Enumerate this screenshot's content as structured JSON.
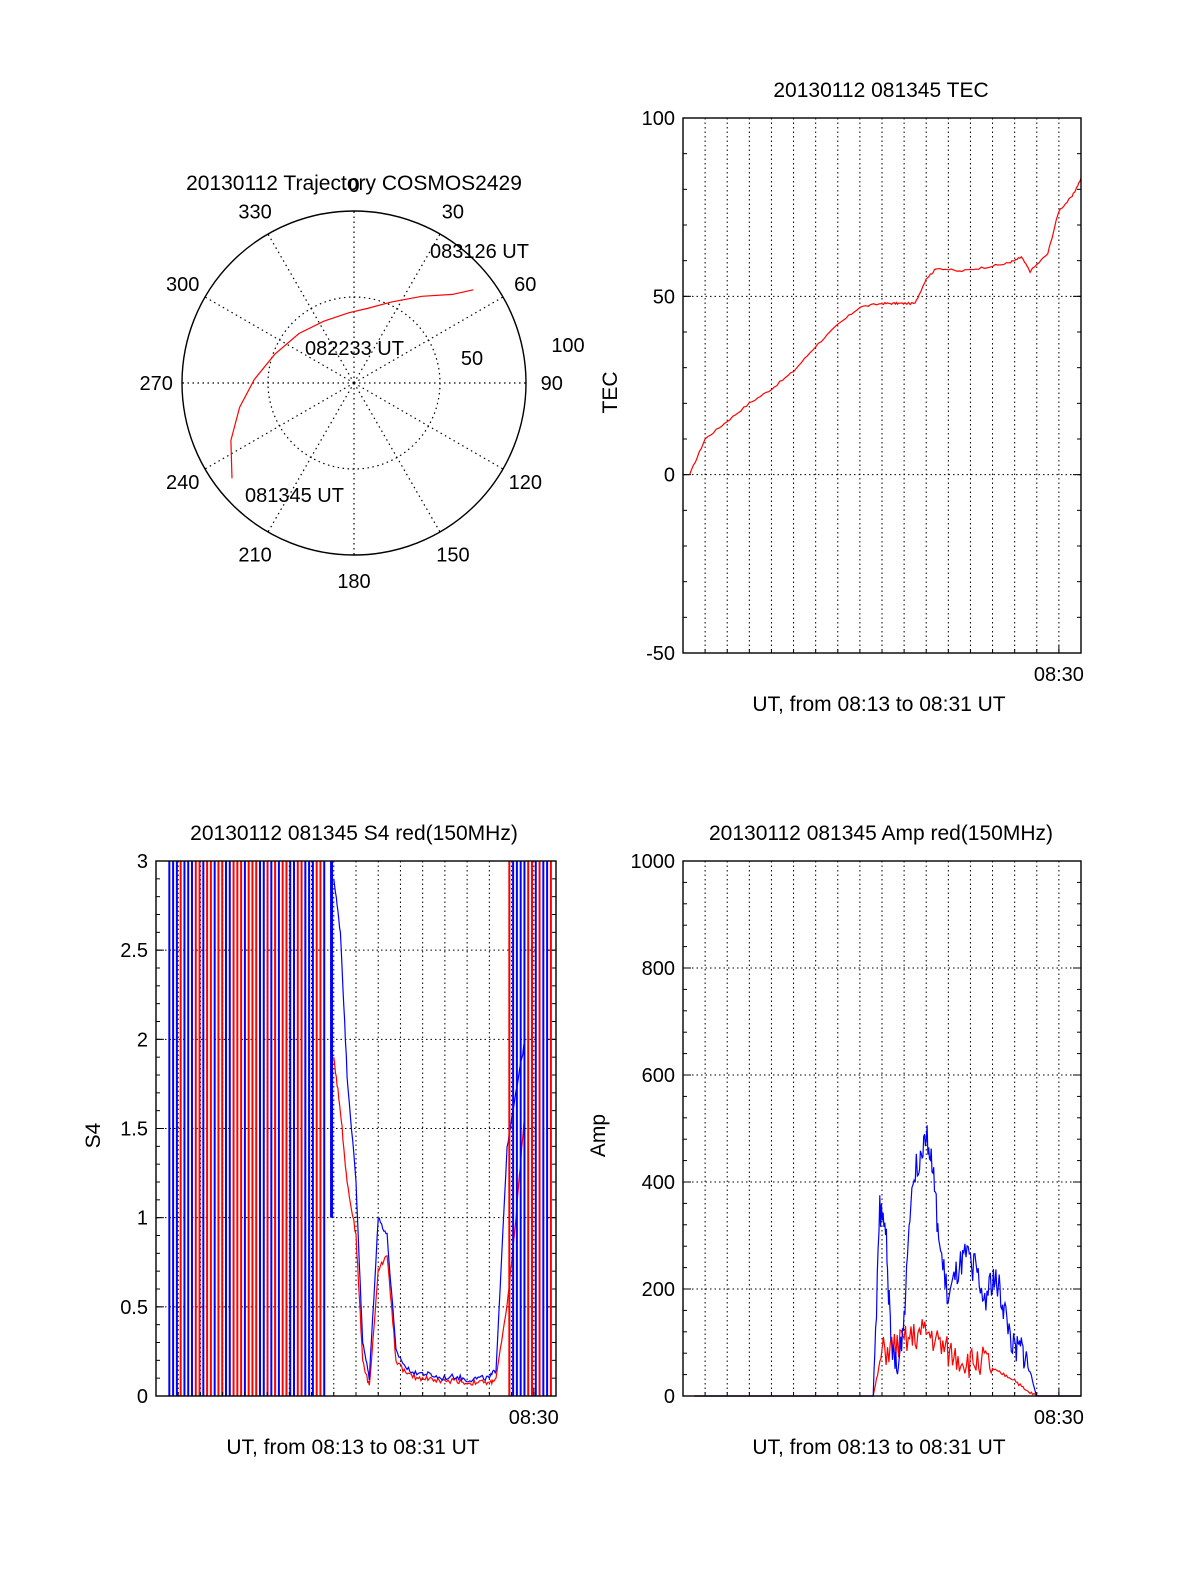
{
  "chart_data": [
    {
      "type": "polar",
      "title": "20130112 Trajectory COSMOS2429",
      "azimuth_labels": [
        "0",
        "30",
        "60",
        "90",
        "120",
        "150",
        "180",
        "210",
        "240",
        "270",
        "300",
        "330"
      ],
      "radial_labels": [
        "50",
        "100"
      ],
      "rmax": 100,
      "grid": true,
      "annotations": [
        {
          "text": "083126 UT",
          "azimuth": 52,
          "r": 88
        },
        {
          "text": "082233 UT",
          "azimuth": 0,
          "r": 2
        },
        {
          "text": "081345 UT",
          "azimuth": 232,
          "r": 90
        }
      ],
      "series": [
        {
          "color": "#ff0000",
          "points": [
            [
              232,
              90
            ],
            [
              245,
              79
            ],
            [
              258,
              68
            ],
            [
              272,
              58
            ],
            [
              290,
              49
            ],
            [
              312,
              43
            ],
            [
              334,
              40
            ],
            [
              356,
              41
            ],
            [
              10,
              44
            ],
            [
              25,
              52
            ],
            [
              38,
              64
            ],
            [
              48,
              77
            ],
            [
              52,
              88
            ]
          ]
        }
      ]
    },
    {
      "type": "line",
      "title": "20130112 081345 TEC",
      "ylabel": "TEC",
      "xlabel": "UT, from 08:13 to 08:31 UT",
      "xlim": [
        0,
        18
      ],
      "ylim": [
        -50,
        100
      ],
      "yticks": [
        "-50",
        "0",
        "50",
        "100"
      ],
      "xtick_label": "08:30",
      "grid": true,
      "series": [
        {
          "color": "#ff0000",
          "x": [
            0.3,
            1.0,
            2.0,
            3.0,
            4.0,
            5.0,
            6.0,
            7.0,
            8.0,
            9.0,
            9.5,
            9.9,
            10.5,
            11.0,
            11.5,
            12.5,
            13.5,
            14.5,
            15.0,
            15.3,
            15.7,
            16.5,
            17.0,
            17.6,
            18.0
          ],
          "y": [
            0,
            10,
            15,
            20,
            24,
            29,
            36,
            42,
            47,
            48,
            48,
            48,
            48,
            55,
            58,
            57,
            58,
            59,
            60,
            61,
            57,
            62,
            74,
            78,
            83
          ]
        }
      ]
    },
    {
      "type": "line",
      "title": "20130112 081345 S4 red(150MHz)",
      "ylabel": "S4",
      "xlabel": "UT, from 08:13 to 08:31 UT",
      "xlim": [
        0,
        18
      ],
      "ylim": [
        0,
        3
      ],
      "yticks": [
        "0",
        "0.5",
        "1",
        "1.5",
        "2",
        "2.5",
        "3"
      ],
      "xtick_label": "08:30",
      "grid": true,
      "series": [
        {
          "color": "#ff0000",
          "x": [
            8.0,
            8.3,
            8.6,
            9.0,
            9.3,
            9.6,
            10.0,
            10.4,
            10.8,
            11.3,
            11.8,
            12.3,
            12.8,
            13.5,
            14.0,
            14.5,
            15.0,
            15.3,
            15.8,
            16.2,
            16.6
          ],
          "y": [
            1.9,
            1.6,
            1.2,
            0.9,
            0.2,
            0.05,
            0.7,
            0.8,
            0.2,
            0.12,
            0.1,
            0.1,
            0.08,
            0.09,
            0.07,
            0.08,
            0.07,
            0.1,
            0.5,
            1.0,
            1.6
          ]
        },
        {
          "color": "#0000ff",
          "x": [
            8.0,
            8.3,
            8.6,
            9.0,
            9.3,
            9.6,
            10.0,
            10.4,
            10.8,
            11.3,
            11.8,
            12.3,
            12.8,
            13.5,
            14.0,
            14.5,
            15.0,
            15.3,
            15.8,
            16.2,
            16.6
          ],
          "y": [
            2.9,
            2.6,
            1.8,
            1.2,
            0.3,
            0.1,
            1.0,
            0.9,
            0.25,
            0.15,
            0.13,
            0.12,
            0.1,
            0.11,
            0.09,
            0.1,
            0.1,
            0.15,
            1.4,
            1.7,
            2.0
          ]
        }
      ]
    },
    {
      "type": "line",
      "title": "20130112 081345 Amp red(150MHz)",
      "ylabel": "Amp",
      "xlabel": "UT, from 08:13 to 08:31 UT",
      "xlim": [
        0,
        18
      ],
      "ylim": [
        0,
        1000
      ],
      "yticks": [
        "0",
        "200",
        "400",
        "600",
        "800",
        "1000"
      ],
      "xtick_label": "08:30",
      "grid": true,
      "series": [
        {
          "color": "#ff0000",
          "x": [
            0.5,
            3.0,
            6.0,
            8.6,
            9.0,
            9.5,
            10.0,
            10.5,
            11.0,
            11.5,
            12.0,
            12.5,
            13.0,
            13.5,
            14.0,
            14.5,
            15.0,
            15.5,
            16.0,
            17.0,
            18.0
          ],
          "y": [
            0,
            0,
            0,
            0,
            80,
            90,
            100,
            110,
            120,
            100,
            80,
            70,
            60,
            70,
            50,
            40,
            30,
            10,
            0,
            0,
            0
          ]
        },
        {
          "color": "#0000ff",
          "x": [
            0.5,
            3.0,
            6.0,
            8.6,
            8.9,
            9.2,
            9.4,
            9.7,
            10.0,
            10.3,
            10.7,
            11.0,
            11.3,
            11.6,
            12.0,
            12.4,
            12.8,
            13.2,
            13.6,
            14.0,
            14.3,
            14.6,
            15.0,
            15.3,
            15.6,
            16.0,
            17.0,
            18.0
          ],
          "y": [
            0,
            0,
            0,
            0,
            350,
            300,
            100,
            40,
            150,
            380,
            450,
            500,
            420,
            280,
            180,
            230,
            260,
            240,
            180,
            220,
            200,
            150,
            80,
            90,
            60,
            0,
            0,
            0
          ]
        }
      ]
    }
  ]
}
